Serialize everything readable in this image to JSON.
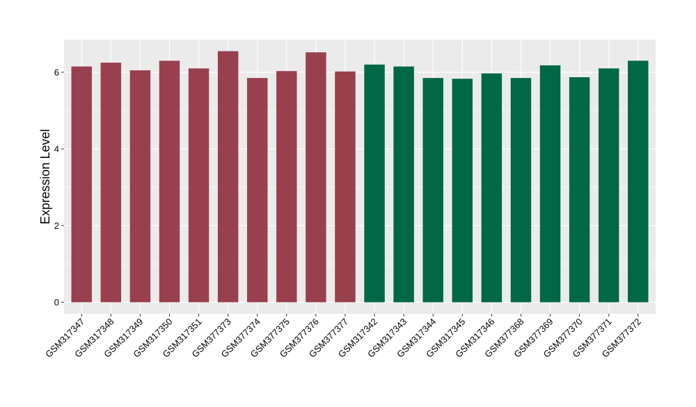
{
  "chart_data": {
    "type": "bar",
    "xlabel": "",
    "ylabel": "Expression Level",
    "ylim": [
      -0.3,
      6.85
    ],
    "yticks": [
      0,
      2,
      4,
      6
    ],
    "grid": true,
    "background": "#EBEBEB",
    "gridline_color": "#FFFFFF",
    "categories": [
      "GSM317347",
      "GSM317348",
      "GSM317349",
      "GSM317350",
      "GSM317351",
      "GSM377373",
      "GSM377374",
      "GSM377375",
      "GSM377376",
      "GSM377377",
      "GSM317342",
      "GSM317343",
      "GSM317344",
      "GSM317345",
      "GSM317346",
      "GSM377368",
      "GSM377369",
      "GSM377370",
      "GSM377371",
      "GSM377372"
    ],
    "values": [
      6.15,
      6.25,
      6.05,
      6.3,
      6.1,
      6.55,
      5.85,
      6.03,
      6.52,
      6.02,
      6.2,
      6.15,
      5.85,
      5.83,
      5.97,
      5.85,
      6.18,
      5.87,
      6.1,
      6.3
    ],
    "bar_colors": [
      "#99404F",
      "#99404F",
      "#99404F",
      "#99404F",
      "#99404F",
      "#99404F",
      "#99404F",
      "#99404F",
      "#99404F",
      "#99404F",
      "#006846",
      "#006846",
      "#006846",
      "#006846",
      "#006846",
      "#006846",
      "#006846",
      "#006846",
      "#006846",
      "#006846"
    ]
  }
}
